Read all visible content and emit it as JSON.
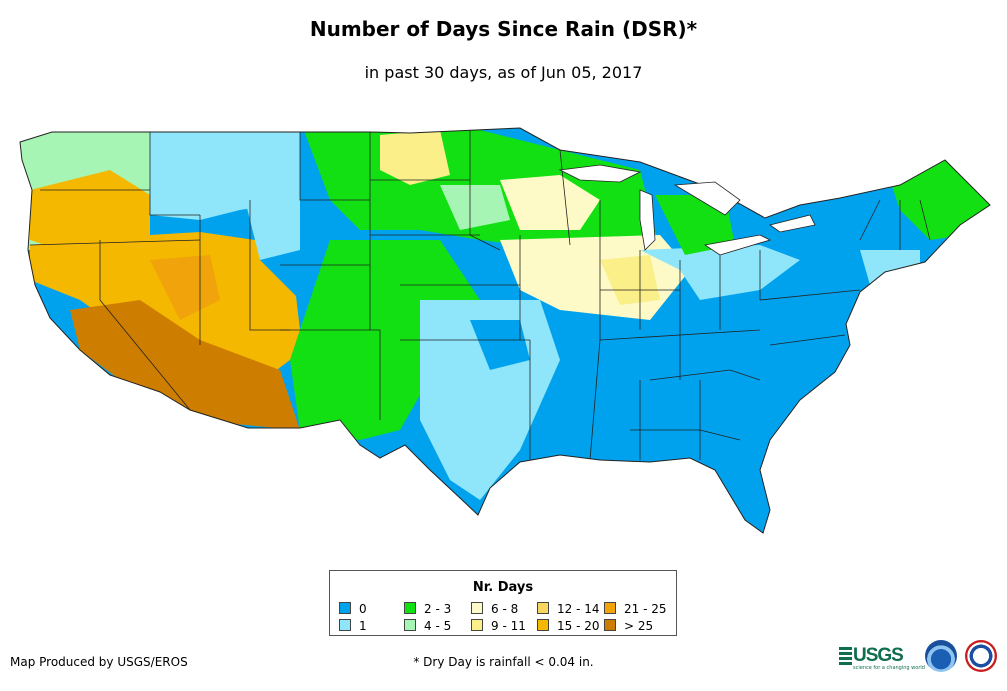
{
  "title": "Number of Days Since Rain (DSR)*",
  "subtitle": "in past 30 days, as of Jun 05, 2017",
  "legend": {
    "title": "Nr. Days",
    "items": [
      {
        "label": "0",
        "color": "#00a2ed"
      },
      {
        "label": "1",
        "color": "#8fe6fb"
      },
      {
        "label": "2 - 3",
        "color": "#12e012"
      },
      {
        "label": "4 - 5",
        "color": "#a7f5b5"
      },
      {
        "label": "6 - 8",
        "color": "#fdfac7"
      },
      {
        "label": "9 - 11",
        "color": "#fbef8a"
      },
      {
        "label": "12 - 14",
        "color": "#f8d75e"
      },
      {
        "label": "15 - 20",
        "color": "#f5b800"
      },
      {
        "label": "21 - 25",
        "color": "#f0a30a"
      },
      {
        "label": "> 25",
        "color": "#cd7d00"
      }
    ]
  },
  "footer": {
    "credit": "Map Produced by USGS/EROS",
    "note": "* Dry Day is rainfall < 0.04 in."
  },
  "logos": {
    "usgs_text": "USGS",
    "usgs_tagline": "science for a changing world",
    "icons": [
      "usgs-logo",
      "noaa-logo",
      "nws-logo"
    ]
  }
}
